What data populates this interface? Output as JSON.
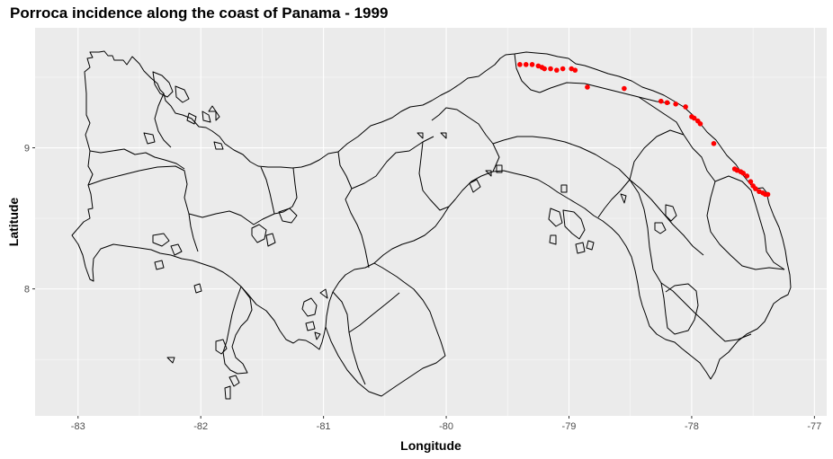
{
  "title": "Porroca incidence along the coast of Panama - 1999",
  "chart_data": {
    "type": "scatter",
    "title": "Porroca incidence along the coast of Panama - 1999",
    "xlabel": "Longitude",
    "ylabel": "Latitude",
    "xlim": [
      -83.35,
      -76.9
    ],
    "ylim": [
      7.1,
      9.85
    ],
    "x_ticks": [
      -83,
      -82,
      -81,
      -80,
      -79,
      -78,
      -77
    ],
    "x_tick_labels": [
      "-83",
      "-82",
      "-81",
      "-80",
      "-79",
      "-78",
      "-77"
    ],
    "y_ticks": [
      8,
      9
    ],
    "y_tick_labels": [
      "8",
      "9"
    ],
    "grid": true,
    "background": "#ebebeb",
    "point_color": "#ff0000",
    "outline_color": "#000000",
    "series": [
      {
        "x": [
          -79.4,
          -79.35,
          -79.3,
          -79.25,
          -79.22,
          -79.2,
          -79.15,
          -79.1,
          -79.05,
          -78.98,
          -78.95,
          -78.85,
          -78.55,
          -78.25,
          -78.2,
          -78.13,
          -78.05,
          -78.0,
          -77.98,
          -77.95,
          -77.93,
          -77.82,
          -77.65,
          -77.63,
          -77.6,
          -77.58,
          -77.55,
          -77.52,
          -77.5,
          -77.48,
          -77.45,
          -77.42,
          -77.4,
          -77.38
        ],
        "y": [
          9.59,
          9.59,
          9.59,
          9.58,
          9.57,
          9.56,
          9.56,
          9.55,
          9.56,
          9.56,
          9.55,
          9.43,
          9.42,
          9.33,
          9.32,
          9.31,
          9.29,
          9.22,
          9.21,
          9.19,
          9.17,
          9.03,
          8.85,
          8.84,
          8.83,
          8.82,
          8.8,
          8.76,
          8.73,
          8.71,
          8.69,
          8.68,
          8.67,
          8.67
        ]
      }
    ]
  }
}
